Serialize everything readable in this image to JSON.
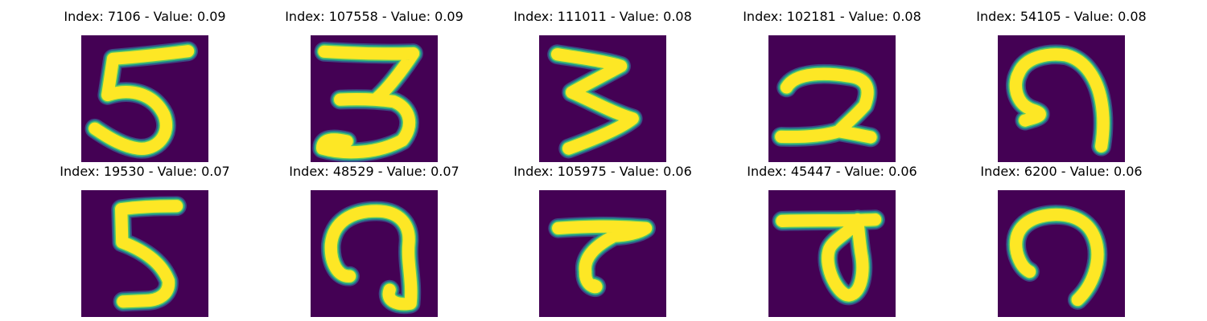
{
  "colors": {
    "background": "#440154",
    "foreground": "#fde725",
    "mid": "#21918c",
    "low": "#3b528b",
    "high": "#5ec962"
  },
  "chart_data": {
    "type": "image_grid",
    "rows": 2,
    "cols": 5,
    "colormap": "viridis",
    "panels": [
      {
        "title": "Index: 7106 - Value: 0.09",
        "index": 7106,
        "value": 0.09,
        "glyph": "5"
      },
      {
        "title": "Index: 107558 - Value: 0.09",
        "index": 107558,
        "value": 0.09,
        "glyph": "3"
      },
      {
        "title": "Index: 111011 - Value: 0.08",
        "index": 111011,
        "value": 0.08,
        "glyph": "3"
      },
      {
        "title": "Index: 102181 - Value: 0.08",
        "index": 102181,
        "value": 0.08,
        "glyph": "2"
      },
      {
        "title": "Index: 54105 - Value: 0.08",
        "index": 54105,
        "value": 0.08,
        "glyph": "9"
      },
      {
        "title": "Index: 19530 - Value: 0.07",
        "index": 19530,
        "value": 0.07,
        "glyph": "5"
      },
      {
        "title": "Index: 48529 - Value: 0.07",
        "index": 48529,
        "value": 0.07,
        "glyph": "9"
      },
      {
        "title": "Index: 105975 - Value: 0.06",
        "index": 105975,
        "value": 0.06,
        "glyph": "7"
      },
      {
        "title": "Index: 45447 - Value: 0.06",
        "index": 45447,
        "value": 0.06,
        "glyph": "4"
      },
      {
        "title": "Index: 6200 - Value: 0.06",
        "index": 6200,
        "value": 0.06,
        "glyph": "9"
      }
    ]
  }
}
